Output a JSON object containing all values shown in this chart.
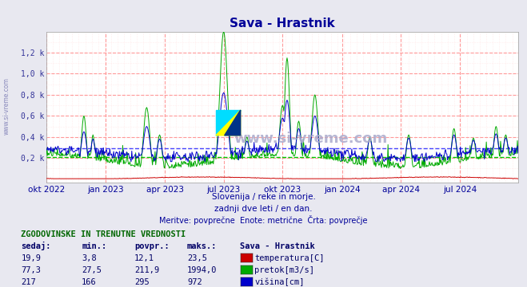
{
  "title": "Sava - Hrastnik",
  "title_color": "#000099",
  "bg_color": "#e8e8f0",
  "plot_bg_color": "#ffffff",
  "grid_color_major": "#ff9999",
  "grid_color_minor": "#ffdddd",
  "watermark": "www.si-vreme.com",
  "subtitle1": "Slovenija / reke in morje.",
  "subtitle2": "zadnji dve leti / en dan.",
  "subtitle3": "Meritve: povprečne  Enote: metrične  Črta: povprečje",
  "subtitle_color": "#000099",
  "ylabel_left": "www.si-vreme.com",
  "x_tick_labels": [
    "okt 2022",
    "jan 2023",
    "apr 2023",
    "jul 2023",
    "okt 2023",
    "jan 2024",
    "apr 2024",
    "jul 2024"
  ],
  "ytick_labels": [
    "0,2 k",
    "0,4 k",
    "0,6 k",
    "0,8 k",
    "1,0 k",
    "1,2 k"
  ],
  "ytick_values": [
    200,
    400,
    600,
    800,
    1000,
    1200
  ],
  "ylim": [
    -30,
    1400
  ],
  "avg_line_blue": 295,
  "avg_line_green": 211.9,
  "temp_color": "#cc0000",
  "flow_color": "#00aa00",
  "height_color": "#0000cc",
  "avg_color_blue": "#4444ff",
  "avg_color_green": "#00cc00",
  "table_title": "ZGODOVINSKE IN TRENUTNE VREDNOSTI",
  "table_headers": [
    "sedaj:",
    "min.:",
    "povpr.:",
    "maks.:",
    "Sava - Hrastnik"
  ],
  "table_data": [
    [
      "19,9",
      "3,8",
      "12,1",
      "23,5",
      "temperatura[C]"
    ],
    [
      "77,3",
      "27,5",
      "211,9",
      "1994,0",
      "pretok[m3/s]"
    ],
    [
      "217",
      "166",
      "295",
      "972",
      "višina[cm]"
    ]
  ],
  "table_colors": [
    "#cc0000",
    "#00aa00",
    "#0000cc"
  ],
  "n_points": 730,
  "x_tick_pos": [
    0,
    92,
    183,
    274,
    365,
    457,
    548,
    639
  ]
}
